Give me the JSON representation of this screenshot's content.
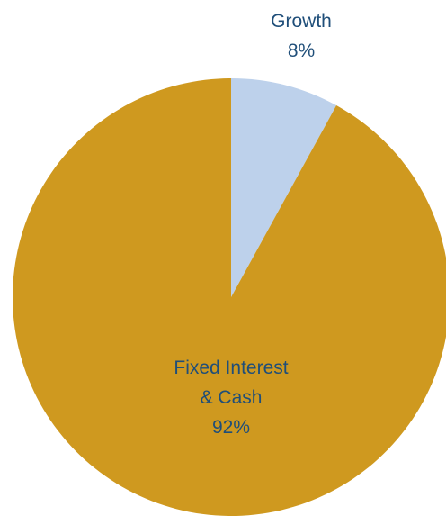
{
  "chart_data": {
    "type": "pie",
    "title": "",
    "slices": [
      {
        "label_lines": [
          "Growth"
        ],
        "value_label": "8%",
        "value": 8,
        "color": "#BDD1EB"
      },
      {
        "label_lines": [
          "Fixed Interest",
          "& Cash"
        ],
        "value_label": "92%",
        "value": 92,
        "color": "#CF991F"
      }
    ],
    "label_color": "#1F4E79",
    "start_angle_deg": 0,
    "direction": "clockwise",
    "legend": "none"
  }
}
